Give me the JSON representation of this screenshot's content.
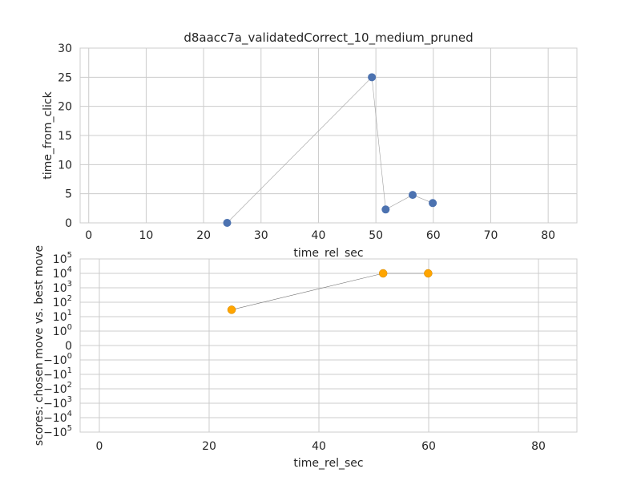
{
  "chart_data": [
    {
      "type": "scatter",
      "title": "d8aacc7a_validatedCorrect_10_medium_pruned",
      "xlabel": "time_rel_sec",
      "ylabel": "time_from_click",
      "xlim": [
        -1.5,
        85
      ],
      "ylim": [
        0,
        30
      ],
      "xticks": [
        "0",
        "10",
        "20",
        "30",
        "40",
        "50",
        "60",
        "70",
        "80"
      ],
      "yticks": [
        "0",
        "5",
        "10",
        "15",
        "20",
        "25",
        "30"
      ],
      "grid": true,
      "marker_color": "#4c72b0",
      "series": [
        {
          "x": [
            24.1,
            49.3,
            51.7,
            56.4,
            59.9
          ],
          "y": [
            0.0,
            25.0,
            2.3,
            4.8,
            3.4
          ]
        }
      ]
    },
    {
      "type": "scatter",
      "title": "",
      "xlabel": "time_rel_sec",
      "ylabel": "scores: chosen move vs. best move",
      "yscale": "symlog",
      "xlim": [
        -3.5,
        87
      ],
      "ylim": [
        -100000,
        100000
      ],
      "xticks": [
        "0",
        "20",
        "40",
        "60",
        "80"
      ],
      "yticks": [
        "10^5",
        "10^4",
        "10^3",
        "10^2",
        "10^1",
        "10^0",
        "0",
        "-10^0",
        "-10^1",
        "-10^2",
        "-10^3",
        "-10^4",
        "-10^5"
      ],
      "grid": true,
      "marker_color": "#ffa500",
      "series": [
        {
          "x": [
            24.1,
            51.7,
            59.9
          ],
          "y": [
            30,
            10000,
            10000
          ]
        }
      ]
    }
  ]
}
